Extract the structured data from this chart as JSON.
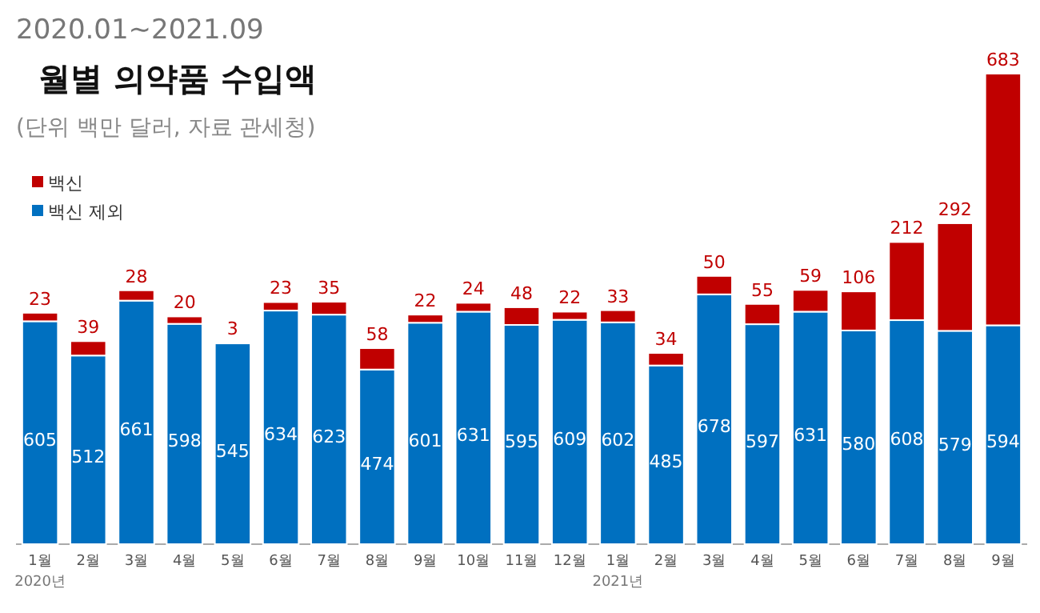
{
  "chart_data": {
    "type": "bar",
    "stacked": true,
    "data_labels": true,
    "legend": "top left",
    "title": "월별 의약품 수입액",
    "subtitle": "(단위 백만 달러, 자료 관세청)",
    "annotations": [
      "2020.01~2021.09",
      "2020년",
      "2021년"
    ],
    "categories": [
      "1월",
      "2월",
      "3월",
      "4월",
      "5월",
      "6월",
      "7월",
      "8월",
      "9월",
      "10월",
      "11월",
      "12월",
      "1월",
      "2월",
      "3월",
      "4월",
      "5월",
      "6월",
      "7월",
      "8월",
      "9월"
    ],
    "series": [
      {
        "name": "백신 제외",
        "color": "#0070c0",
        "values": [
          605,
          512,
          661,
          598,
          545,
          634,
          623,
          474,
          601,
          631,
          595,
          609,
          602,
          485,
          678,
          597,
          631,
          580,
          608,
          579,
          594
        ]
      },
      {
        "name": "백신",
        "color": "#c00000",
        "values": [
          23,
          39,
          28,
          20,
          3,
          23,
          35,
          58,
          22,
          24,
          48,
          22,
          33,
          34,
          50,
          55,
          59,
          106,
          212,
          292,
          683
        ]
      }
    ]
  }
}
